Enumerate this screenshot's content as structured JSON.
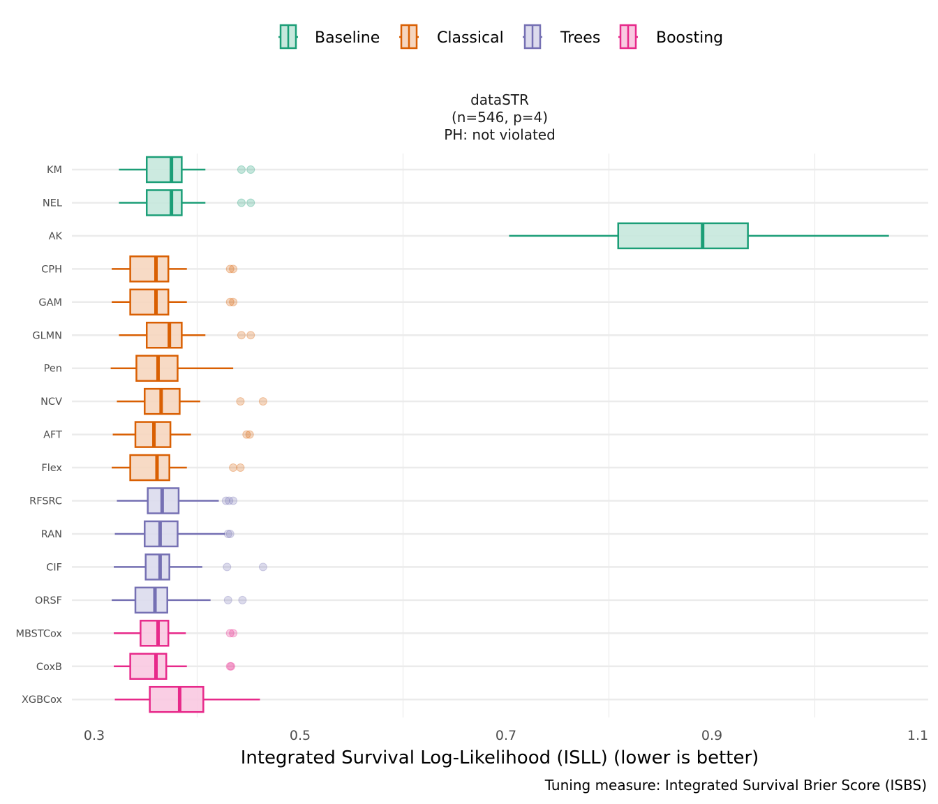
{
  "chart_data": {
    "type": "boxplot",
    "orientation": "horizontal",
    "title": "dataSTR",
    "strip_lines": [
      "dataSTR",
      "(n=546, p=4)",
      "PH: not violated"
    ],
    "xlabel": "Integrated Survival Log-Likelihood (ISLL) (lower is better)",
    "caption": "Tuning measure: Integrated Survival Brier Score (ISBS)",
    "ylabel": "",
    "xlim": [
      0.275,
      1.11
    ],
    "x_ticks": [
      0.3,
      0.5,
      0.7,
      0.9,
      1.1
    ],
    "x_tick_labels": [
      "0.3",
      "0.5",
      "0.7",
      "0.9",
      "1.1"
    ],
    "grid": true,
    "legend_position": "top",
    "legend": [
      {
        "name": "Baseline",
        "stroke": "#1b9e77",
        "fill": "#c6e8dd"
      },
      {
        "name": "Classical",
        "stroke": "#d95f02",
        "fill": "#f6d6bf"
      },
      {
        "name": "Trees",
        "stroke": "#7570b3",
        "fill": "#dcdbed"
      },
      {
        "name": "Boosting",
        "stroke": "#e7298a",
        "fill": "#f9c9e1"
      }
    ],
    "series": [
      {
        "name": "KM",
        "group": "Baseline",
        "whisker_low": 0.324,
        "q1": 0.351,
        "median": 0.375,
        "q3": 0.385,
        "whisker_high": 0.408,
        "outliers": [
          0.443,
          0.452
        ]
      },
      {
        "name": "NEL",
        "group": "Baseline",
        "whisker_low": 0.324,
        "q1": 0.351,
        "median": 0.375,
        "q3": 0.385,
        "whisker_high": 0.408,
        "outliers": [
          0.443,
          0.452
        ]
      },
      {
        "name": "AK",
        "group": "Baseline",
        "whisker_low": 0.703,
        "q1": 0.809,
        "median": 0.891,
        "q3": 0.935,
        "whisker_high": 1.072,
        "outliers": []
      },
      {
        "name": "CPH",
        "group": "Classical",
        "whisker_low": 0.317,
        "q1": 0.335,
        "median": 0.36,
        "q3": 0.372,
        "whisker_high": 0.39,
        "outliers": [
          0.432,
          0.435
        ]
      },
      {
        "name": "GAM",
        "group": "Classical",
        "whisker_low": 0.317,
        "q1": 0.335,
        "median": 0.36,
        "q3": 0.372,
        "whisker_high": 0.39,
        "outliers": [
          0.432,
          0.435
        ]
      },
      {
        "name": "GLMN",
        "group": "Classical",
        "whisker_low": 0.324,
        "q1": 0.351,
        "median": 0.373,
        "q3": 0.385,
        "whisker_high": 0.408,
        "outliers": [
          0.443,
          0.452
        ]
      },
      {
        "name": "Pen",
        "group": "Classical",
        "whisker_low": 0.316,
        "q1": 0.341,
        "median": 0.362,
        "q3": 0.381,
        "whisker_high": 0.435,
        "outliers": []
      },
      {
        "name": "NCV",
        "group": "Classical",
        "whisker_low": 0.322,
        "q1": 0.349,
        "median": 0.365,
        "q3": 0.383,
        "whisker_high": 0.403,
        "outliers": [
          0.442,
          0.464
        ]
      },
      {
        "name": "AFT",
        "group": "Classical",
        "whisker_low": 0.318,
        "q1": 0.34,
        "median": 0.358,
        "q3": 0.374,
        "whisker_high": 0.394,
        "outliers": [
          0.448,
          0.451
        ]
      },
      {
        "name": "Flex",
        "group": "Classical",
        "whisker_low": 0.317,
        "q1": 0.335,
        "median": 0.361,
        "q3": 0.373,
        "whisker_high": 0.39,
        "outliers": [
          0.435,
          0.442
        ]
      },
      {
        "name": "RFSRC",
        "group": "Trees",
        "whisker_low": 0.322,
        "q1": 0.352,
        "median": 0.366,
        "q3": 0.382,
        "whisker_high": 0.421,
        "outliers": [
          0.428,
          0.431,
          0.435
        ]
      },
      {
        "name": "RAN",
        "group": "Trees",
        "whisker_low": 0.32,
        "q1": 0.349,
        "median": 0.364,
        "q3": 0.381,
        "whisker_high": 0.427,
        "outliers": [
          0.43,
          0.432
        ]
      },
      {
        "name": "CIF",
        "group": "Trees",
        "whisker_low": 0.319,
        "q1": 0.35,
        "median": 0.364,
        "q3": 0.373,
        "whisker_high": 0.405,
        "outliers": [
          0.429,
          0.464
        ]
      },
      {
        "name": "ORSF",
        "group": "Trees",
        "whisker_low": 0.317,
        "q1": 0.34,
        "median": 0.359,
        "q3": 0.371,
        "whisker_high": 0.413,
        "outliers": [
          0.43,
          0.444
        ]
      },
      {
        "name": "MBSTCox",
        "group": "Boosting",
        "whisker_low": 0.319,
        "q1": 0.345,
        "median": 0.362,
        "q3": 0.372,
        "whisker_high": 0.389,
        "outliers": [
          0.432,
          0.435
        ]
      },
      {
        "name": "CoxB",
        "group": "Boosting",
        "whisker_low": 0.319,
        "q1": 0.335,
        "median": 0.36,
        "q3": 0.37,
        "whisker_high": 0.39,
        "outliers": [
          0.432,
          0.433
        ]
      },
      {
        "name": "XGBCox",
        "group": "Boosting",
        "whisker_low": 0.32,
        "q1": 0.354,
        "median": 0.383,
        "q3": 0.406,
        "whisker_high": 0.461,
        "outliers": []
      }
    ]
  }
}
